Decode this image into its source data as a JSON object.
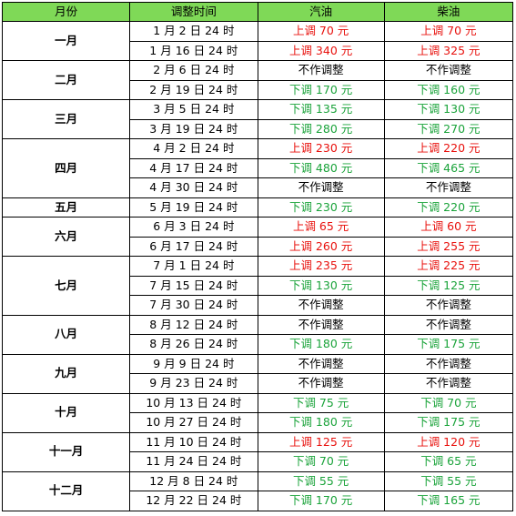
{
  "headers": [
    "月份",
    "调整时间",
    "汽油",
    "柴油"
  ],
  "colors": {
    "header_bg": "#7fd957",
    "up": "#e8100c",
    "down": "#1aa33a"
  },
  "months": [
    {
      "label": "一月",
      "rows": [
        {
          "date": "1 月 2 日 24 时",
          "gasoline": "上调 70 元",
          "diesel": "上调 70 元",
          "g": "up",
          "d": "up"
        },
        {
          "date": "1 月 16 日 24 时",
          "gasoline": "上调 340 元",
          "diesel": "上调 325 元",
          "g": "up",
          "d": "up"
        }
      ]
    },
    {
      "label": "二月",
      "rows": [
        {
          "date": "2 月 6 日 24 时",
          "gasoline": "不作调整",
          "diesel": "不作调整",
          "g": "none",
          "d": "none"
        },
        {
          "date": "2 月 19 日 24 时",
          "gasoline": "下调 170 元",
          "diesel": "下调 160 元",
          "g": "down",
          "d": "down"
        }
      ]
    },
    {
      "label": "三月",
      "rows": [
        {
          "date": "3 月 5 日 24 时",
          "gasoline": "下调 135 元",
          "diesel": "下调 130 元",
          "g": "down",
          "d": "down"
        },
        {
          "date": "3 月 19 日 24 时",
          "gasoline": "下调 280 元",
          "diesel": "下调 270 元",
          "g": "down",
          "d": "down"
        }
      ]
    },
    {
      "label": "四月",
      "rows": [
        {
          "date": "4 月 2 日 24 时",
          "gasoline": "上调 230 元",
          "diesel": "上调 220 元",
          "g": "up",
          "d": "up"
        },
        {
          "date": "4 月 17 日 24 时",
          "gasoline": "下调 480 元",
          "diesel": "下调 465 元",
          "g": "down",
          "d": "down"
        },
        {
          "date": "4 月 30 日 24 时",
          "gasoline": "不作调整",
          "diesel": "不作调整",
          "g": "none",
          "d": "none"
        }
      ]
    },
    {
      "label": "五月",
      "rows": [
        {
          "date": "5 月 19 日 24 时",
          "gasoline": "下调 230 元",
          "diesel": "下调 220 元",
          "g": "down",
          "d": "down"
        }
      ]
    },
    {
      "label": "六月",
      "rows": [
        {
          "date": "6 月 3 日 24 时",
          "gasoline": "上调 65 元",
          "diesel": "上调 60 元",
          "g": "up",
          "d": "up"
        },
        {
          "date": "6 月 17 日 24 时",
          "gasoline": "上调 260 元",
          "diesel": "上调 255 元",
          "g": "up",
          "d": "up"
        }
      ]
    },
    {
      "label": "七月",
      "rows": [
        {
          "date": "7 月 1 日 24 时",
          "gasoline": "上调 235 元",
          "diesel": "上调 225 元",
          "g": "up",
          "d": "up"
        },
        {
          "date": "7 月 15 日 24 时",
          "gasoline": "下调 130 元",
          "diesel": "下调 125 元",
          "g": "down",
          "d": "down"
        },
        {
          "date": "7 月 30 日 24 时",
          "gasoline": "不作调整",
          "diesel": "不作调整",
          "g": "none",
          "d": "none"
        }
      ]
    },
    {
      "label": "八月",
      "rows": [
        {
          "date": "8 月 12 日 24 时",
          "gasoline": "不作调整",
          "diesel": "不作调整",
          "g": "none",
          "d": "none"
        },
        {
          "date": "8 月 26 日 24 时",
          "gasoline": "下调 180 元",
          "diesel": "下调 175 元",
          "g": "down",
          "d": "down"
        }
      ]
    },
    {
      "label": "九月",
      "rows": [
        {
          "date": "9 月 9 日 24 时",
          "gasoline": "不作调整",
          "diesel": "不作调整",
          "g": "none",
          "d": "none"
        },
        {
          "date": "9 月 23 日 24 时",
          "gasoline": "不作调整",
          "diesel": "不作调整",
          "g": "none",
          "d": "none"
        }
      ]
    },
    {
      "label": "十月",
      "rows": [
        {
          "date": "10 月 13 日 24 时",
          "gasoline": "下调 75 元",
          "diesel": "下调 70 元",
          "g": "down",
          "d": "down"
        },
        {
          "date": "10 月 27 日 24 时",
          "gasoline": "下调 180 元",
          "diesel": "下调 175 元",
          "g": "down",
          "d": "down"
        }
      ]
    },
    {
      "label": "十一月",
      "rows": [
        {
          "date": "11 月 10 日 24 时",
          "gasoline": "上调 125 元",
          "diesel": "上调 120 元",
          "g": "up",
          "d": "up"
        },
        {
          "date": "11 月 24 日 24 时",
          "gasoline": "下调 70 元",
          "diesel": "下调 65 元",
          "g": "down",
          "d": "down"
        }
      ]
    },
    {
      "label": "十二月",
      "rows": [
        {
          "date": "12 月 8 日 24 时",
          "gasoline": "下调 55 元",
          "diesel": "下调 55 元",
          "g": "down",
          "d": "down"
        },
        {
          "date": "12 月 22 日 24 时",
          "gasoline": "下调 170 元",
          "diesel": "下调 165 元",
          "g": "down",
          "d": "down"
        }
      ]
    }
  ]
}
